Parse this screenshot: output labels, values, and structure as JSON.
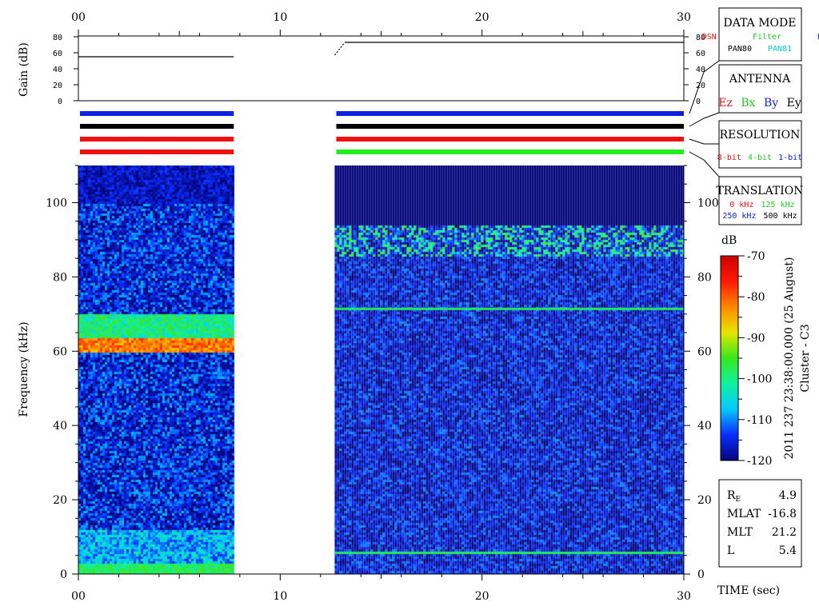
{
  "time_axis": {
    "ticks": [
      "00",
      "10",
      "20",
      "30"
    ],
    "tick_values": [
      0,
      10,
      20,
      30
    ],
    "range": [
      0,
      30
    ],
    "label": "TIME (sec)"
  },
  "gain_panel": {
    "ylabel": "Gain (dB)",
    "ticks": [
      "80",
      "60",
      "40",
      "20",
      "0"
    ],
    "tick_values": [
      80,
      60,
      40,
      20,
      0
    ],
    "range": [
      0,
      80
    ],
    "segments": [
      {
        "t": [
          0.0,
          7.7
        ],
        "db": [
          55,
          55
        ]
      },
      {
        "t": [
          12.7,
          13.2
        ],
        "db": [
          57,
          73
        ]
      },
      {
        "t": [
          13.2,
          30.0
        ],
        "db": [
          73,
          73
        ]
      }
    ],
    "segment_colors": [
      "#000000",
      "#000000",
      "#000000"
    ]
  },
  "status_bars": {
    "rows": [
      {
        "segments": [
          {
            "t": [
              0.0,
              7.7
            ],
            "color": "#0b22e0"
          },
          {
            "t": [
              12.7,
              30.0
            ],
            "color": "#0b22e0"
          }
        ]
      },
      {
        "segments": [
          {
            "t": [
              0.0,
              7.7
            ],
            "color": "#000000"
          },
          {
            "t": [
              12.7,
              30.0
            ],
            "color": "#000000"
          }
        ]
      },
      {
        "segments": [
          {
            "t": [
              0.0,
              7.7
            ],
            "color": "#ee1111"
          },
          {
            "t": [
              12.7,
              30.0
            ],
            "color": "#ee1111"
          }
        ]
      },
      {
        "segments": [
          {
            "t": [
              0.0,
              7.7
            ],
            "color": "#ee1111"
          },
          {
            "t": [
              12.7,
              30.0
            ],
            "color": "#22ee22"
          }
        ]
      }
    ]
  },
  "spectrogram": {
    "ylabel": "Frequency (kHz)",
    "ticks": [
      "100",
      "80",
      "60",
      "40",
      "20",
      "0"
    ],
    "tick_values": [
      100,
      80,
      60,
      40,
      20,
      0
    ],
    "range": [
      0,
      110
    ],
    "data_intervals": [
      [
        0.0,
        7.7
      ],
      [
        12.7,
        30.0
      ]
    ],
    "gap": [
      7.7,
      12.7
    ],
    "features": {
      "emission_band_khz": [
        60,
        64
      ],
      "emission_level_db": -82,
      "emission_halo_khz": [
        64,
        70
      ],
      "emission_halo_level_db": -100,
      "low_band_khz": [
        0,
        3
      ],
      "low_band_level_db": -98,
      "line_khz": [
        71.5,
        5.8
      ],
      "line_level_db": -98,
      "second_interval_cutoff_khz": 88,
      "background_level_db": -115
    }
  },
  "colorbar": {
    "unit": "dB",
    "ticks": [
      "-70",
      "-80",
      "-90",
      "-100",
      "-110",
      "-120"
    ],
    "tick_values": [
      -70,
      -80,
      -90,
      -100,
      -110,
      -120
    ],
    "range": [
      -120,
      -70
    ],
    "stops": [
      "#05057a",
      "#0a2cff",
      "#06c8ff",
      "#10f0a0",
      "#38e81e",
      "#e6e600",
      "#ff8800",
      "#ff1a00",
      "#cc0000"
    ],
    "side_label": "2011 237 23:38:00.000 (25 August)",
    "satellite_label": "Cluster - C3"
  },
  "legend": {
    "data_mode": {
      "title": "DATA MODE",
      "row1": [
        {
          "text": "DSN",
          "color": "#ee1111"
        },
        {
          "text": "Filter",
          "color": "#22cc22"
        },
        {
          "text": "DC",
          "color": "#1122dd"
        }
      ],
      "row2": [
        {
          "text": "PAN80",
          "color": "#000000"
        },
        {
          "text": "PAN81",
          "color": "#00cccc"
        }
      ]
    },
    "antenna": {
      "title": "ANTENNA",
      "items": [
        {
          "text": "Ez",
          "color": "#ee1111"
        },
        {
          "text": "Bx",
          "color": "#22cc22"
        },
        {
          "text": "By",
          "color": "#1122dd"
        },
        {
          "text": "Ey",
          "color": "#000000"
        }
      ]
    },
    "resolution": {
      "title": "RESOLUTION",
      "items": [
        {
          "text": "8-bit",
          "color": "#ee1111"
        },
        {
          "text": "4-bit",
          "color": "#22cc22"
        },
        {
          "text": "1-bit",
          "color": "#1122dd"
        }
      ]
    },
    "translation": {
      "title": "TRANSLATION",
      "row1": [
        {
          "text": "0 kHz",
          "color": "#ee1111"
        },
        {
          "text": "125 kHz",
          "color": "#22cc22"
        }
      ],
      "row2": [
        {
          "text": "250 kHz",
          "color": "#1122dd"
        },
        {
          "text": "500 kHz",
          "color": "#000000"
        }
      ]
    }
  },
  "orbit_info": {
    "rows": [
      {
        "label": "R",
        "sub": "E",
        "value": "4.9"
      },
      {
        "label": "MLAT",
        "sub": "",
        "value": "-16.8"
      },
      {
        "label": "MLT",
        "sub": "",
        "value": "21.2"
      },
      {
        "label": "L",
        "sub": "",
        "value": "5.4"
      }
    ]
  },
  "chart_data": {
    "type": "heatmap",
    "title": "",
    "xlabel": "TIME (sec)",
    "ylabel": "Frequency (kHz)",
    "xlim": [
      0,
      30
    ],
    "ylim": [
      0,
      110
    ],
    "x_ticks": [
      "00",
      "10",
      "20",
      "30"
    ],
    "y_ticks": [
      "0",
      "20",
      "40",
      "60",
      "80",
      "100"
    ],
    "colorbar": {
      "unit": "dB",
      "range": [
        -120,
        -70
      ],
      "ticks": [
        "-70",
        "-80",
        "-90",
        "-100",
        "-110",
        "-120"
      ]
    },
    "subplots": [
      {
        "type": "line",
        "ylabel": "Gain (dB)",
        "ylim": [
          0,
          80
        ],
        "series": [
          {
            "x": [
              0,
              7.7,
              12.7,
              13.2,
              30
            ],
            "y": [
              55,
              55,
              57,
              73,
              73
            ]
          }
        ]
      }
    ],
    "annotations": [
      "2011 237 23:38:00.000 (25 August)",
      "Cluster - C3"
    ]
  }
}
